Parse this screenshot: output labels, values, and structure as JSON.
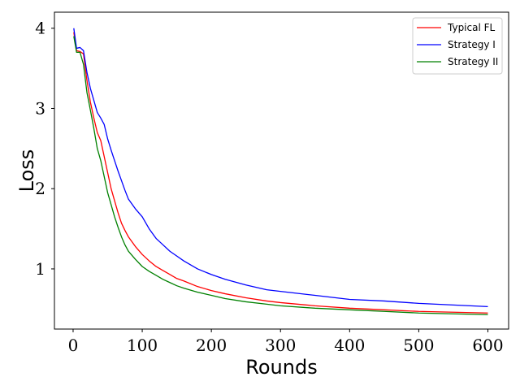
{
  "chart_data": {
    "type": "line",
    "xlabel": "Rounds",
    "ylabel": "Loss",
    "xlim": [
      -27,
      630
    ],
    "ylim": [
      0.25,
      4.2
    ],
    "x_ticks": [
      0,
      100,
      200,
      300,
      400,
      500,
      600
    ],
    "y_ticks": [
      1,
      2,
      3,
      4
    ],
    "legend_position": "top-right",
    "grid": false,
    "series": [
      {
        "name": "Typical FL",
        "color": "#ff0000",
        "x": [
          1,
          5,
          10,
          15,
          20,
          25,
          30,
          35,
          40,
          45,
          50,
          55,
          60,
          65,
          70,
          75,
          80,
          90,
          100,
          110,
          120,
          130,
          140,
          150,
          160,
          180,
          200,
          220,
          250,
          280,
          300,
          350,
          400,
          450,
          500,
          550,
          600
        ],
        "y": [
          3.95,
          3.72,
          3.71,
          3.68,
          3.35,
          3.08,
          2.88,
          2.7,
          2.6,
          2.4,
          2.2,
          2.0,
          1.85,
          1.7,
          1.57,
          1.48,
          1.4,
          1.28,
          1.18,
          1.1,
          1.03,
          0.98,
          0.93,
          0.88,
          0.85,
          0.78,
          0.73,
          0.69,
          0.64,
          0.6,
          0.58,
          0.54,
          0.51,
          0.49,
          0.47,
          0.46,
          0.45
        ]
      },
      {
        "name": "Strategy I",
        "color": "#0000ff",
        "x": [
          1,
          5,
          10,
          15,
          20,
          25,
          30,
          35,
          40,
          45,
          50,
          55,
          60,
          65,
          70,
          75,
          80,
          90,
          100,
          110,
          120,
          130,
          140,
          150,
          160,
          180,
          200,
          220,
          250,
          280,
          300,
          350,
          400,
          450,
          500,
          550,
          600
        ],
        "y": [
          4.0,
          3.75,
          3.76,
          3.72,
          3.45,
          3.25,
          3.1,
          2.95,
          2.88,
          2.8,
          2.62,
          2.48,
          2.35,
          2.22,
          2.1,
          1.98,
          1.87,
          1.75,
          1.65,
          1.5,
          1.38,
          1.3,
          1.22,
          1.16,
          1.1,
          1.0,
          0.93,
          0.87,
          0.8,
          0.74,
          0.72,
          0.67,
          0.62,
          0.6,
          0.57,
          0.55,
          0.53
        ]
      },
      {
        "name": "Strategy II",
        "color": "#008000",
        "x": [
          1,
          5,
          10,
          15,
          20,
          25,
          30,
          35,
          40,
          45,
          50,
          55,
          60,
          65,
          70,
          75,
          80,
          90,
          100,
          110,
          120,
          130,
          140,
          150,
          160,
          180,
          200,
          220,
          250,
          280,
          300,
          350,
          400,
          450,
          500,
          550,
          600
        ],
        "y": [
          3.9,
          3.7,
          3.7,
          3.55,
          3.2,
          2.98,
          2.75,
          2.5,
          2.35,
          2.15,
          1.95,
          1.8,
          1.65,
          1.52,
          1.4,
          1.3,
          1.22,
          1.12,
          1.03,
          0.97,
          0.92,
          0.87,
          0.83,
          0.79,
          0.76,
          0.71,
          0.67,
          0.63,
          0.59,
          0.56,
          0.54,
          0.51,
          0.49,
          0.47,
          0.45,
          0.44,
          0.43
        ]
      }
    ]
  }
}
